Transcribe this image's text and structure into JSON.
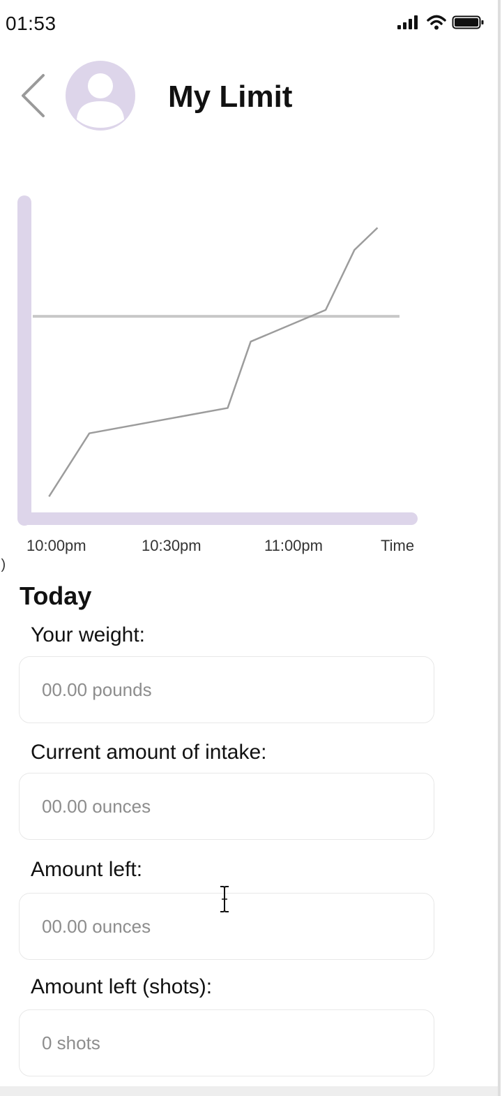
{
  "status_bar": {
    "time": "01:53",
    "icons": [
      "signal-icon",
      "wifi-icon",
      "battery-icon"
    ]
  },
  "header": {
    "back_icon": "chevron-left-icon",
    "avatar_icon": "person-icon",
    "title": "My Limit"
  },
  "chart_data": {
    "type": "line",
    "title": "",
    "xlabel": "Time",
    "ylabel": "",
    "x_ticks": [
      "10:00pm",
      "10:30pm",
      "11:00pm"
    ],
    "x_unit": "minutes after 10:00pm",
    "xlim": [
      -5,
      55
    ],
    "ylim": [
      0,
      100
    ],
    "grid": false,
    "series": [
      {
        "x": [
          -4,
          3,
          27,
          31,
          44,
          49,
          53
        ],
        "y": [
          7,
          27,
          35,
          56,
          66,
          85,
          92
        ]
      }
    ],
    "reference_lines": [
      {
        "y": 64
      }
    ],
    "colors": {
      "axis": "#ddd5ea",
      "line": "#9c9c9c",
      "limit_line": "#c8c8c8"
    }
  },
  "stray_text": ":)",
  "today": {
    "title": "Today",
    "fields": [
      {
        "label": "Your weight:",
        "placeholder": "00.00 pounds"
      },
      {
        "label": "Current amount of intake:",
        "placeholder": "00.00 ounces"
      },
      {
        "label": "Amount left:",
        "placeholder": "00.00 ounces"
      },
      {
        "label": "Amount left (shots):",
        "placeholder": "0 shots"
      }
    ]
  }
}
